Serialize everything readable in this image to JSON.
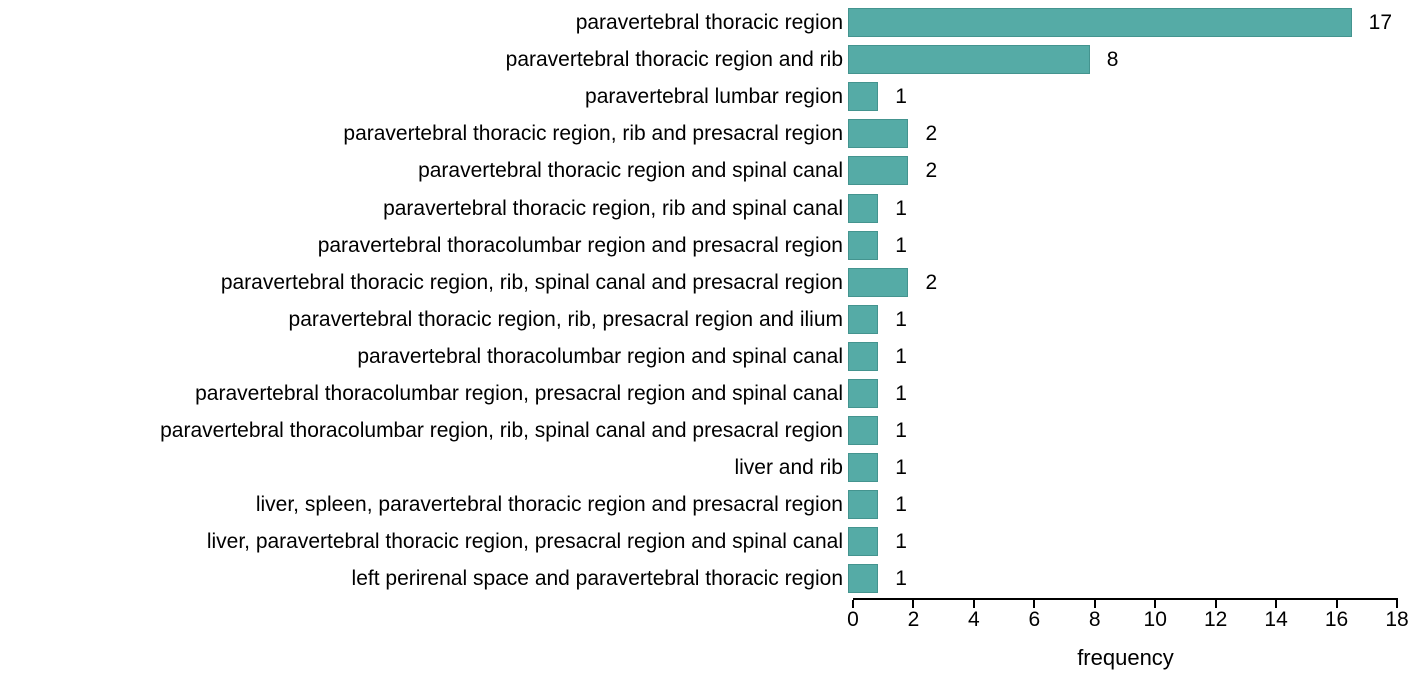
{
  "chart_data": {
    "type": "bar",
    "orientation": "horizontal",
    "title": "",
    "xlabel": "frequency",
    "ylabel": "",
    "xlim": [
      0,
      18
    ],
    "xticks": [
      0,
      2,
      4,
      6,
      8,
      10,
      12,
      14,
      16,
      18
    ],
    "grid": false,
    "legend": null,
    "bar_color": "#55aba6",
    "bar_border_color": "#44948f",
    "axis_color": "#000000",
    "categories": [
      "paravertebral thoracic region",
      "paravertebral thoracic region and rib",
      "paravertebral lumbar region",
      "paravertebral thoracic region, rib and presacral region",
      "paravertebral thoracic region and spinal canal",
      "paravertebral thoracic region, rib and spinal canal",
      "paravertebral thoracolumbar region and presacral region",
      "paravertebral thoracic region, rib, spinal canal and presacral region",
      "paravertebral thoracic region, rib, presacral region and ilium",
      "paravertebral thoracolumbar region and spinal canal",
      "paravertebral thoracolumbar region, presacral region and spinal canal",
      "paravertebral thoracolumbar region, rib, spinal canal and presacral region",
      "liver and rib",
      "liver, spleen, paravertebral thoracic region and presacral region",
      "liver, paravertebral thoracic region, presacral region and spinal canal",
      "left perirenal space and paravertebral thoracic region"
    ],
    "values": [
      17,
      8,
      1,
      2,
      2,
      1,
      1,
      2,
      1,
      1,
      1,
      1,
      1,
      1,
      1,
      1
    ]
  }
}
